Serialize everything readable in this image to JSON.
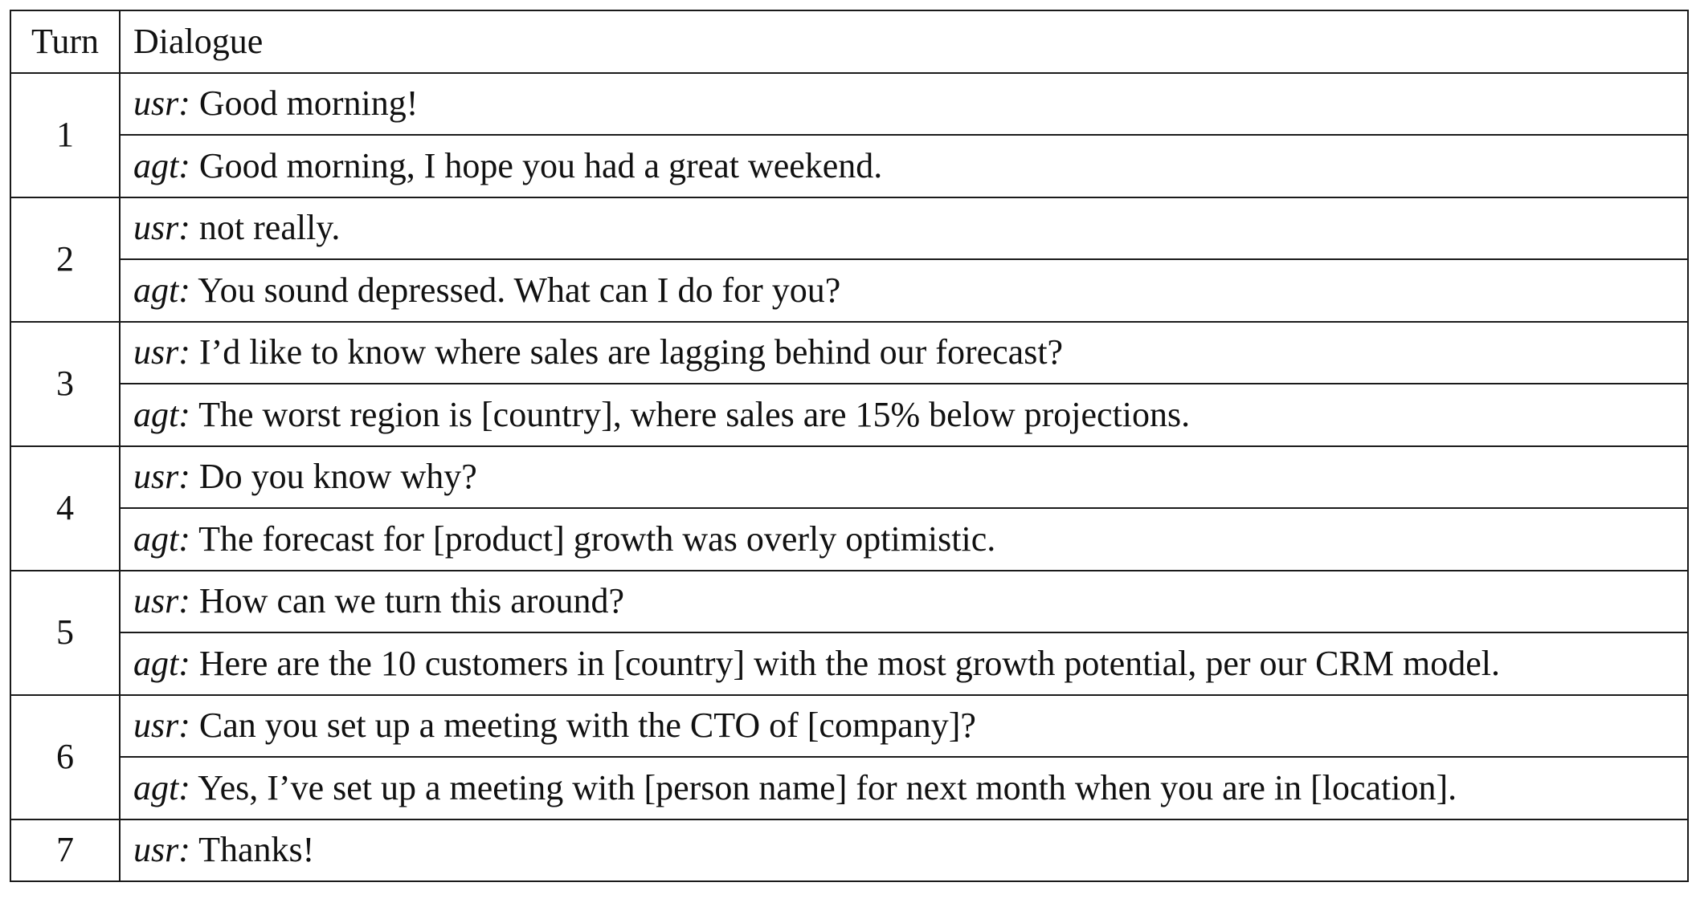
{
  "table": {
    "headers": {
      "turn": "Turn",
      "dialogue": "Dialogue"
    },
    "turns": [
      {
        "turn": "1",
        "utterances": [
          {
            "speaker": "usr:",
            "text": " Good morning!"
          },
          {
            "speaker": "agt:",
            "text": " Good morning, I hope you had a great weekend."
          }
        ]
      },
      {
        "turn": "2",
        "utterances": [
          {
            "speaker": "usr:",
            "text": " not really."
          },
          {
            "speaker": "agt:",
            "text": " You sound depressed. What can I do for you?"
          }
        ]
      },
      {
        "turn": "3",
        "utterances": [
          {
            "speaker": "usr:",
            "text": " I’d like to know where sales are lagging behind our forecast?"
          },
          {
            "speaker": "agt:",
            "text": " The worst region is [country], where sales are 15% below projections."
          }
        ]
      },
      {
        "turn": "4",
        "utterances": [
          {
            "speaker": "usr:",
            "text": " Do you know why?"
          },
          {
            "speaker": "agt:",
            "text": " The forecast for [product] growth was overly optimistic."
          }
        ]
      },
      {
        "turn": "5",
        "utterances": [
          {
            "speaker": "usr:",
            "text": " How can we turn this around?"
          },
          {
            "speaker": "agt:",
            "text": " Here are the 10 customers in [country] with the most growth potential, per our CRM model."
          }
        ]
      },
      {
        "turn": "6",
        "utterances": [
          {
            "speaker": "usr:",
            "text": " Can you set up a meeting with the CTO of [company]?"
          },
          {
            "speaker": "agt:",
            "text": " Yes, I’ve set up a meeting with [person name] for next month when you are in [location]."
          }
        ]
      },
      {
        "turn": "7",
        "utterances": [
          {
            "speaker": "usr:",
            "text": " Thanks!"
          }
        ]
      }
    ]
  }
}
